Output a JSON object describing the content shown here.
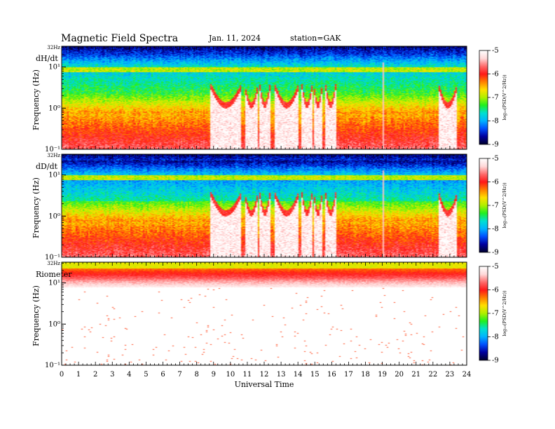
{
  "header": {
    "title": "Magnetic  Field  Spectra",
    "date": "Jan. 11, 2024",
    "station": "station=GAK"
  },
  "colors": {
    "scale": [
      "#000030",
      "#0000a0",
      "#0050ff",
      "#00b4ff",
      "#00e0d0",
      "#20f020",
      "#b0f000",
      "#ffe000",
      "#ff8000",
      "#ff1818",
      "#ff6a6a",
      "#ffd8d8",
      "#ffffff"
    ]
  },
  "chart_data": [
    {
      "type": "heatmap",
      "panel_label": "dH/dt",
      "ylabel": "Frequency (Hz)",
      "yscale": "log",
      "top_label": "32Hz",
      "y_ticks": [
        "10⁻¹",
        "10⁰",
        "10¹"
      ],
      "colorbar": {
        "label": "log₁₀(PSD(V^2/Hz))",
        "ticks": [
          "-5",
          "-6",
          "-7",
          "-8",
          "-9"
        ],
        "range": [
          -9,
          -5
        ]
      },
      "features": {
        "band_hz": 8,
        "disturbed_intervals_ut": [
          [
            8.8,
            10.6
          ],
          [
            10.8,
            11.6
          ],
          [
            11.7,
            12.3
          ],
          [
            12.6,
            14.0
          ],
          [
            14.2,
            14.8
          ],
          [
            14.9,
            15.4
          ],
          [
            15.6,
            16.2
          ],
          [
            22.3,
            23.4
          ]
        ],
        "spike_ut": 19.0
      }
    },
    {
      "type": "heatmap",
      "panel_label": "dD/dt",
      "ylabel": "Frequency (Hz)",
      "yscale": "log",
      "top_label": "32Hz",
      "y_ticks": [
        "10⁻¹",
        "10⁰",
        "10¹"
      ],
      "colorbar": {
        "label": "log₁₀(PSD(V^2/Hz))",
        "ticks": [
          "-5",
          "-6",
          "-7",
          "-8",
          "-9"
        ],
        "range": [
          -9,
          -5
        ]
      },
      "features": {
        "band_hz": 8,
        "disturbed_intervals_ut": [
          [
            8.8,
            10.6
          ],
          [
            10.8,
            11.6
          ],
          [
            11.7,
            12.3
          ],
          [
            12.6,
            14.0
          ],
          [
            14.2,
            14.8
          ],
          [
            14.9,
            15.4
          ],
          [
            15.6,
            16.2
          ],
          [
            22.3,
            23.4
          ]
        ],
        "spike_ut": 19.0
      }
    },
    {
      "type": "heatmap",
      "panel_label": "Riometer",
      "ylabel": "Frequency (Hz)",
      "yscale": "log",
      "top_label": "32Hz",
      "y_ticks": [
        "10⁻¹",
        "10⁰",
        "10¹"
      ],
      "colorbar": {
        "label": "log₁₀(PSD(V^2/Hz))",
        "ticks": [
          "-5",
          "-6",
          "-7",
          "-8",
          "-9"
        ],
        "range": [
          -9,
          -5
        ]
      },
      "features": {
        "band_hz": 20
      }
    }
  ],
  "xaxis": {
    "label": "Universal Time",
    "range": [
      0,
      24
    ],
    "ticks": [
      "0",
      "1",
      "2",
      "3",
      "4",
      "5",
      "6",
      "7",
      "8",
      "9",
      "10",
      "11",
      "12",
      "13",
      "14",
      "15",
      "16",
      "17",
      "18",
      "19",
      "20",
      "21",
      "22",
      "23",
      "24"
    ]
  }
}
